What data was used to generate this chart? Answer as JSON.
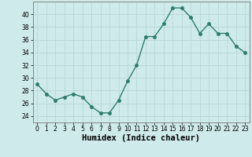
{
  "x": [
    0,
    1,
    2,
    3,
    4,
    5,
    6,
    7,
    8,
    9,
    10,
    11,
    12,
    13,
    14,
    15,
    16,
    17,
    18,
    19,
    20,
    21,
    22,
    23
  ],
  "y": [
    29,
    27.5,
    26.5,
    27,
    27.5,
    27,
    25.5,
    24.5,
    24.5,
    26.5,
    29.5,
    32,
    36.5,
    36.5,
    38.5,
    41,
    41,
    39.5,
    37,
    38.5,
    37,
    37,
    35,
    34
  ],
  "line_color": "#2e7d6e",
  "marker": "o",
  "marker_size": 2.5,
  "bg_color": "#ceeaea",
  "grid_color": "#b8d8d8",
  "xlabel": "Humidex (Indice chaleur)",
  "xlim": [
    -0.5,
    23.5
  ],
  "ylim": [
    23,
    42
  ],
  "yticks": [
    24,
    26,
    28,
    30,
    32,
    34,
    36,
    38,
    40
  ],
  "xticks": [
    0,
    1,
    2,
    3,
    4,
    5,
    6,
    7,
    8,
    9,
    10,
    11,
    12,
    13,
    14,
    15,
    16,
    17,
    18,
    19,
    20,
    21,
    22,
    23
  ],
  "tick_fontsize": 5.5,
  "label_fontsize": 7.5,
  "line_width": 1.0
}
